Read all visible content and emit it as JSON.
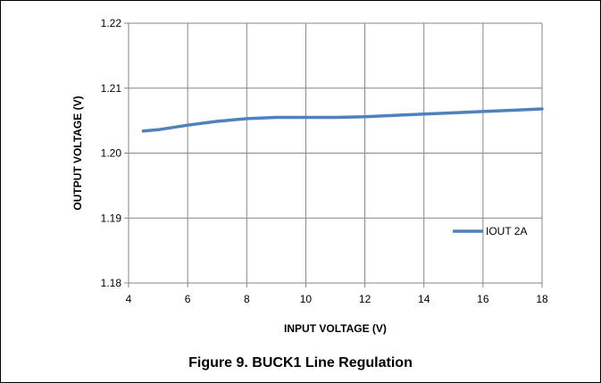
{
  "figure": {
    "caption": "Figure 9. BUCK1 Line Regulation"
  },
  "colors": {
    "series": "#4f81bd",
    "grid": "#868686",
    "axis": "#868686",
    "frame": "#000000"
  },
  "chart_data": {
    "type": "line",
    "title": "",
    "xlabel": "INPUT VOLTAGE (V)",
    "ylabel": "OUTPUT VOLTAGE (V)",
    "xlim": [
      4,
      18
    ],
    "ylim": [
      1.18,
      1.22
    ],
    "xticks": [
      "4",
      "6",
      "8",
      "10",
      "12",
      "14",
      "16",
      "18"
    ],
    "yticks": [
      "1.18",
      "1.19",
      "1.20",
      "1.21",
      "1.22"
    ],
    "grid": true,
    "legend_position": "right-center",
    "series": [
      {
        "name": "IOUT 2A",
        "x": [
          4.5,
          5.0,
          6.0,
          7.0,
          8.0,
          9.0,
          10.0,
          11.0,
          12.0,
          13.0,
          14.0,
          15.0,
          16.0,
          17.0,
          18.0
        ],
        "y": [
          1.2034,
          1.2036,
          1.2043,
          1.2049,
          1.2053,
          1.2055,
          1.2055,
          1.2055,
          1.2056,
          1.2058,
          1.206,
          1.2062,
          1.2064,
          1.2066,
          1.2068
        ]
      }
    ]
  }
}
